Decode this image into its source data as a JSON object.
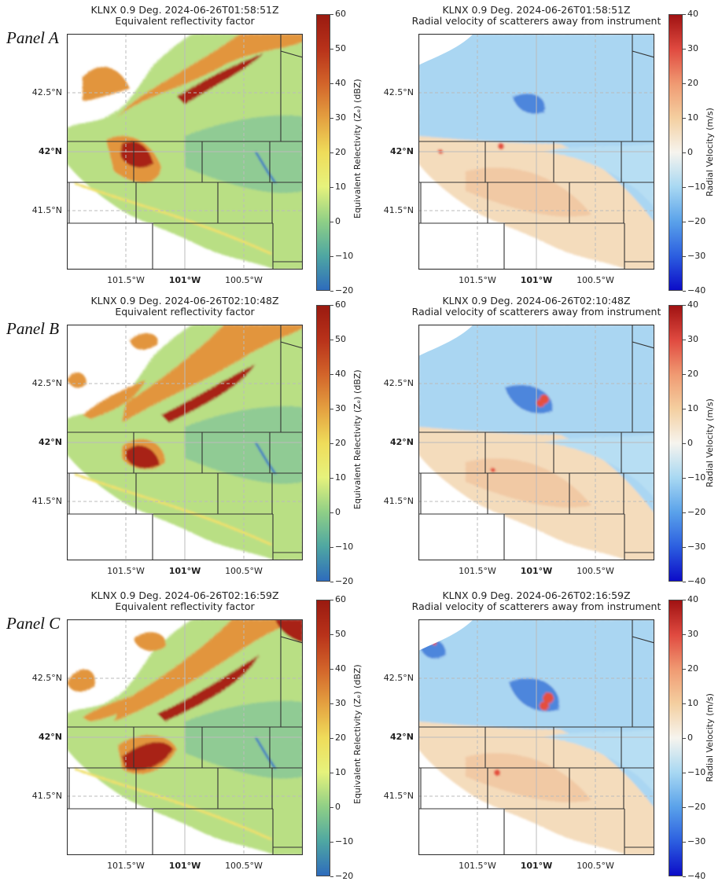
{
  "panels": [
    {
      "label": "Panel A",
      "left": {
        "title": "KLNX 0.9 Deg. 2024-06-26T01:58:51Z",
        "subtitle": "Equivalent reflectivity factor"
      },
      "right": {
        "title": "KLNX 0.9 Deg. 2024-06-26T01:58:51Z",
        "subtitle": "Radial velocity of scatterers away from instrument"
      }
    },
    {
      "label": "Panel B",
      "left": {
        "title": "KLNX 0.9 Deg. 2024-06-26T02:10:48Z",
        "subtitle": "Equivalent reflectivity factor"
      },
      "right": {
        "title": "KLNX 0.9 Deg. 2024-06-26T02:10:48Z",
        "subtitle": "Radial velocity of scatterers away from instrument"
      }
    },
    {
      "label": "Panel C",
      "left": {
        "title": "KLNX 0.9 Deg. 2024-06-26T02:16:59Z",
        "subtitle": "Equivalent reflectivity factor"
      },
      "right": {
        "title": "KLNX 0.9 Deg. 2024-06-26T02:16:59Z",
        "subtitle": "Radial velocity of scatterers away from instrument"
      }
    }
  ],
  "axes": {
    "lat_ticks": [
      "42.5°N",
      "42°N",
      "41.5°N"
    ],
    "lon_ticks": [
      "101.5°W",
      "101°W",
      "100.5°W"
    ]
  },
  "reflectivity_colorbar": {
    "label": "Equivalent Relectivity (Zₑ) (dBZ)",
    "range": [
      -20,
      60
    ],
    "ticks": [
      "60",
      "50",
      "40",
      "30",
      "20",
      "10",
      "0",
      "−10",
      "−20"
    ],
    "colors": [
      "#9a1a10",
      "#b8321a",
      "#d2642a",
      "#e4a040",
      "#efdc5a",
      "#e6f27c",
      "#8fcf86",
      "#4fa7a2",
      "#2e6cbc"
    ]
  },
  "velocity_colorbar": {
    "label": "Radial Velocity (m/s)",
    "range": [
      -40,
      40
    ],
    "ticks": [
      "40",
      "30",
      "20",
      "10",
      "0",
      "−10",
      "−20",
      "−30",
      "−40"
    ],
    "colors": [
      "#a01212",
      "#e04a40",
      "#f09a72",
      "#f4cfa0",
      "#f6f4ee",
      "#a8d8f2",
      "#5aa2ea",
      "#2c5fe0",
      "#0c0cc8"
    ]
  }
}
